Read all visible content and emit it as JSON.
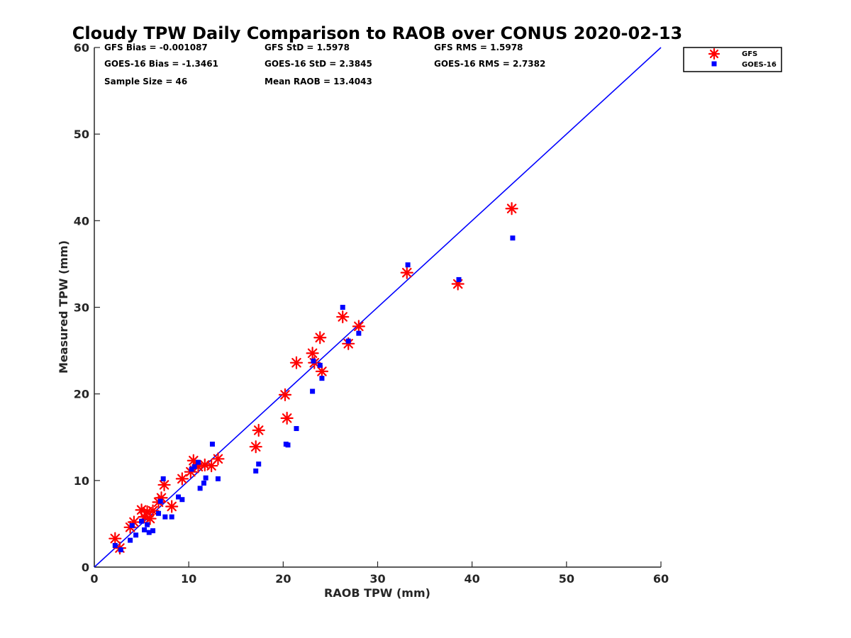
{
  "chart_data": {
    "type": "scatter",
    "title": "Cloudy TPW Daily Comparison to RAOB over CONUS 2020-02-13",
    "xlabel": "RAOB TPW (mm)",
    "ylabel": "Measured TPW (mm)",
    "xlim": [
      0,
      60
    ],
    "ylim": [
      0,
      60
    ],
    "xticks": [
      "0",
      "10",
      "20",
      "30",
      "40",
      "50",
      "60"
    ],
    "yticks": [
      "0",
      "10",
      "20",
      "30",
      "40",
      "50",
      "60"
    ],
    "grid": false,
    "legend_position": "top-right",
    "reference_line": "1:1",
    "stats": [
      [
        "GFS Bias = -0.001087",
        "GFS StD = 1.5978",
        "GFS RMS = 1.5978"
      ],
      [
        "GOES-16 Bias = -1.3461",
        "GOES-16 StD = 2.3845",
        "GOES-16 RMS = 2.7382"
      ],
      [
        "Sample Size = 46",
        "Mean RAOB = 13.4043",
        ""
      ]
    ],
    "series": [
      {
        "name": "GFS",
        "marker": "asterisk",
        "color": "#ff0000",
        "points": [
          [
            2.2,
            3.3
          ],
          [
            2.7,
            2.2
          ],
          [
            3.8,
            4.6
          ],
          [
            4.2,
            5.2
          ],
          [
            5.0,
            6.6
          ],
          [
            5.3,
            5.8
          ],
          [
            5.6,
            6.4
          ],
          [
            5.9,
            5.6
          ],
          [
            6.2,
            6.5
          ],
          [
            6.8,
            7.5
          ],
          [
            7.1,
            8.0
          ],
          [
            7.4,
            9.5
          ],
          [
            8.2,
            7.0
          ],
          [
            9.3,
            10.2
          ],
          [
            10.2,
            11.0
          ],
          [
            10.5,
            12.3
          ],
          [
            11.0,
            11.6
          ],
          [
            11.7,
            11.8
          ],
          [
            12.4,
            11.7
          ],
          [
            13.1,
            12.5
          ],
          [
            17.1,
            13.9
          ],
          [
            17.4,
            15.8
          ],
          [
            20.2,
            19.9
          ],
          [
            20.4,
            17.2
          ],
          [
            21.4,
            23.6
          ],
          [
            23.1,
            24.7
          ],
          [
            23.3,
            23.6
          ],
          [
            23.9,
            26.5
          ],
          [
            24.1,
            22.6
          ],
          [
            26.3,
            28.9
          ],
          [
            26.9,
            25.8
          ],
          [
            28.0,
            27.8
          ],
          [
            33.1,
            34.0
          ],
          [
            38.5,
            32.7
          ],
          [
            44.2,
            41.4
          ]
        ]
      },
      {
        "name": "GOES-16",
        "marker": "square",
        "color": "#0000ff",
        "points": [
          [
            2.2,
            2.5
          ],
          [
            2.8,
            2.0
          ],
          [
            3.8,
            3.1
          ],
          [
            4.0,
            4.8
          ],
          [
            4.4,
            3.7
          ],
          [
            5.0,
            5.3
          ],
          [
            5.3,
            4.3
          ],
          [
            5.6,
            4.9
          ],
          [
            5.8,
            4.0
          ],
          [
            6.2,
            4.2
          ],
          [
            6.8,
            6.2
          ],
          [
            7.0,
            7.6
          ],
          [
            7.3,
            10.2
          ],
          [
            7.5,
            5.8
          ],
          [
            8.2,
            5.8
          ],
          [
            8.9,
            8.1
          ],
          [
            9.3,
            7.8
          ],
          [
            10.3,
            11.3
          ],
          [
            10.6,
            11.6
          ],
          [
            11.0,
            12.1
          ],
          [
            11.2,
            9.1
          ],
          [
            11.6,
            9.7
          ],
          [
            11.8,
            10.3
          ],
          [
            12.5,
            14.2
          ],
          [
            13.1,
            10.2
          ],
          [
            17.1,
            11.1
          ],
          [
            17.4,
            11.9
          ],
          [
            20.3,
            14.2
          ],
          [
            20.5,
            14.1
          ],
          [
            21.4,
            16.0
          ],
          [
            23.1,
            20.3
          ],
          [
            23.2,
            23.8
          ],
          [
            23.9,
            23.3
          ],
          [
            24.1,
            21.8
          ],
          [
            26.3,
            30.0
          ],
          [
            26.9,
            26.1
          ],
          [
            28.0,
            27.0
          ],
          [
            33.2,
            34.9
          ],
          [
            38.6,
            33.2
          ],
          [
            44.3,
            38.0
          ]
        ]
      }
    ]
  }
}
